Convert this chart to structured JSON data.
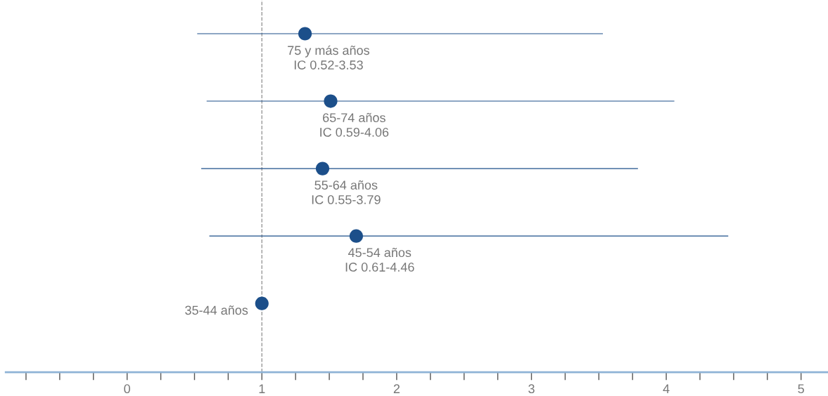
{
  "chart_data": {
    "type": "scatter",
    "orientation": "horizontal",
    "categories": [
      null,
      null,
      null,
      null,
      null
    ],
    "values": [
      1.32,
      1.51,
      1.45,
      1.7,
      1.0
    ],
    "errors": [
      [
        0.52,
        3.53
      ],
      [
        0.59,
        4.06
      ],
      [
        0.55,
        3.79
      ],
      [
        0.61,
        4.46
      ],
      null
    ],
    "value_labels": [
      "75 y más años\nIC 0.52-3.53",
      "65-74 años\nIC 0.59-4.06",
      "55-64 años\nIC 0.55-3.79",
      "45-54 años\nIC 0.61-4.46",
      "35-44 años"
    ],
    "color": "#1c4f8a",
    "marker": "circle",
    "grid": false,
    "xlim": [
      -0.9,
      5.2
    ],
    "xticks": [
      {
        "value": -0.75,
        "label": null
      },
      {
        "value": -0.5,
        "label": null
      },
      {
        "value": -0.25,
        "label": null
      },
      0,
      {
        "value": 0.25,
        "label": null
      },
      {
        "value": 0.5,
        "label": null
      },
      {
        "value": 0.75,
        "label": null
      },
      1,
      {
        "value": 1.25,
        "label": null
      },
      {
        "value": 1.5,
        "label": null
      },
      {
        "value": 1.75,
        "label": null
      },
      2,
      {
        "value": 2.25,
        "label": null
      },
      {
        "value": 2.5,
        "label": null
      },
      {
        "value": 2.75,
        "label": null
      },
      3,
      {
        "value": 3.25,
        "label": null
      },
      {
        "value": 3.5,
        "label": null
      },
      {
        "value": 3.75,
        "label": null
      },
      4,
      {
        "value": 4.25,
        "label": null
      },
      {
        "value": 4.5,
        "label": null
      },
      {
        "value": 4.75,
        "label": null
      },
      5
    ],
    "ref_lines": [
      {
        "axis": "x",
        "value": 1,
        "color": "#999999",
        "line_style": "dashed"
      }
    ],
    "tick_labels": "x"
  }
}
